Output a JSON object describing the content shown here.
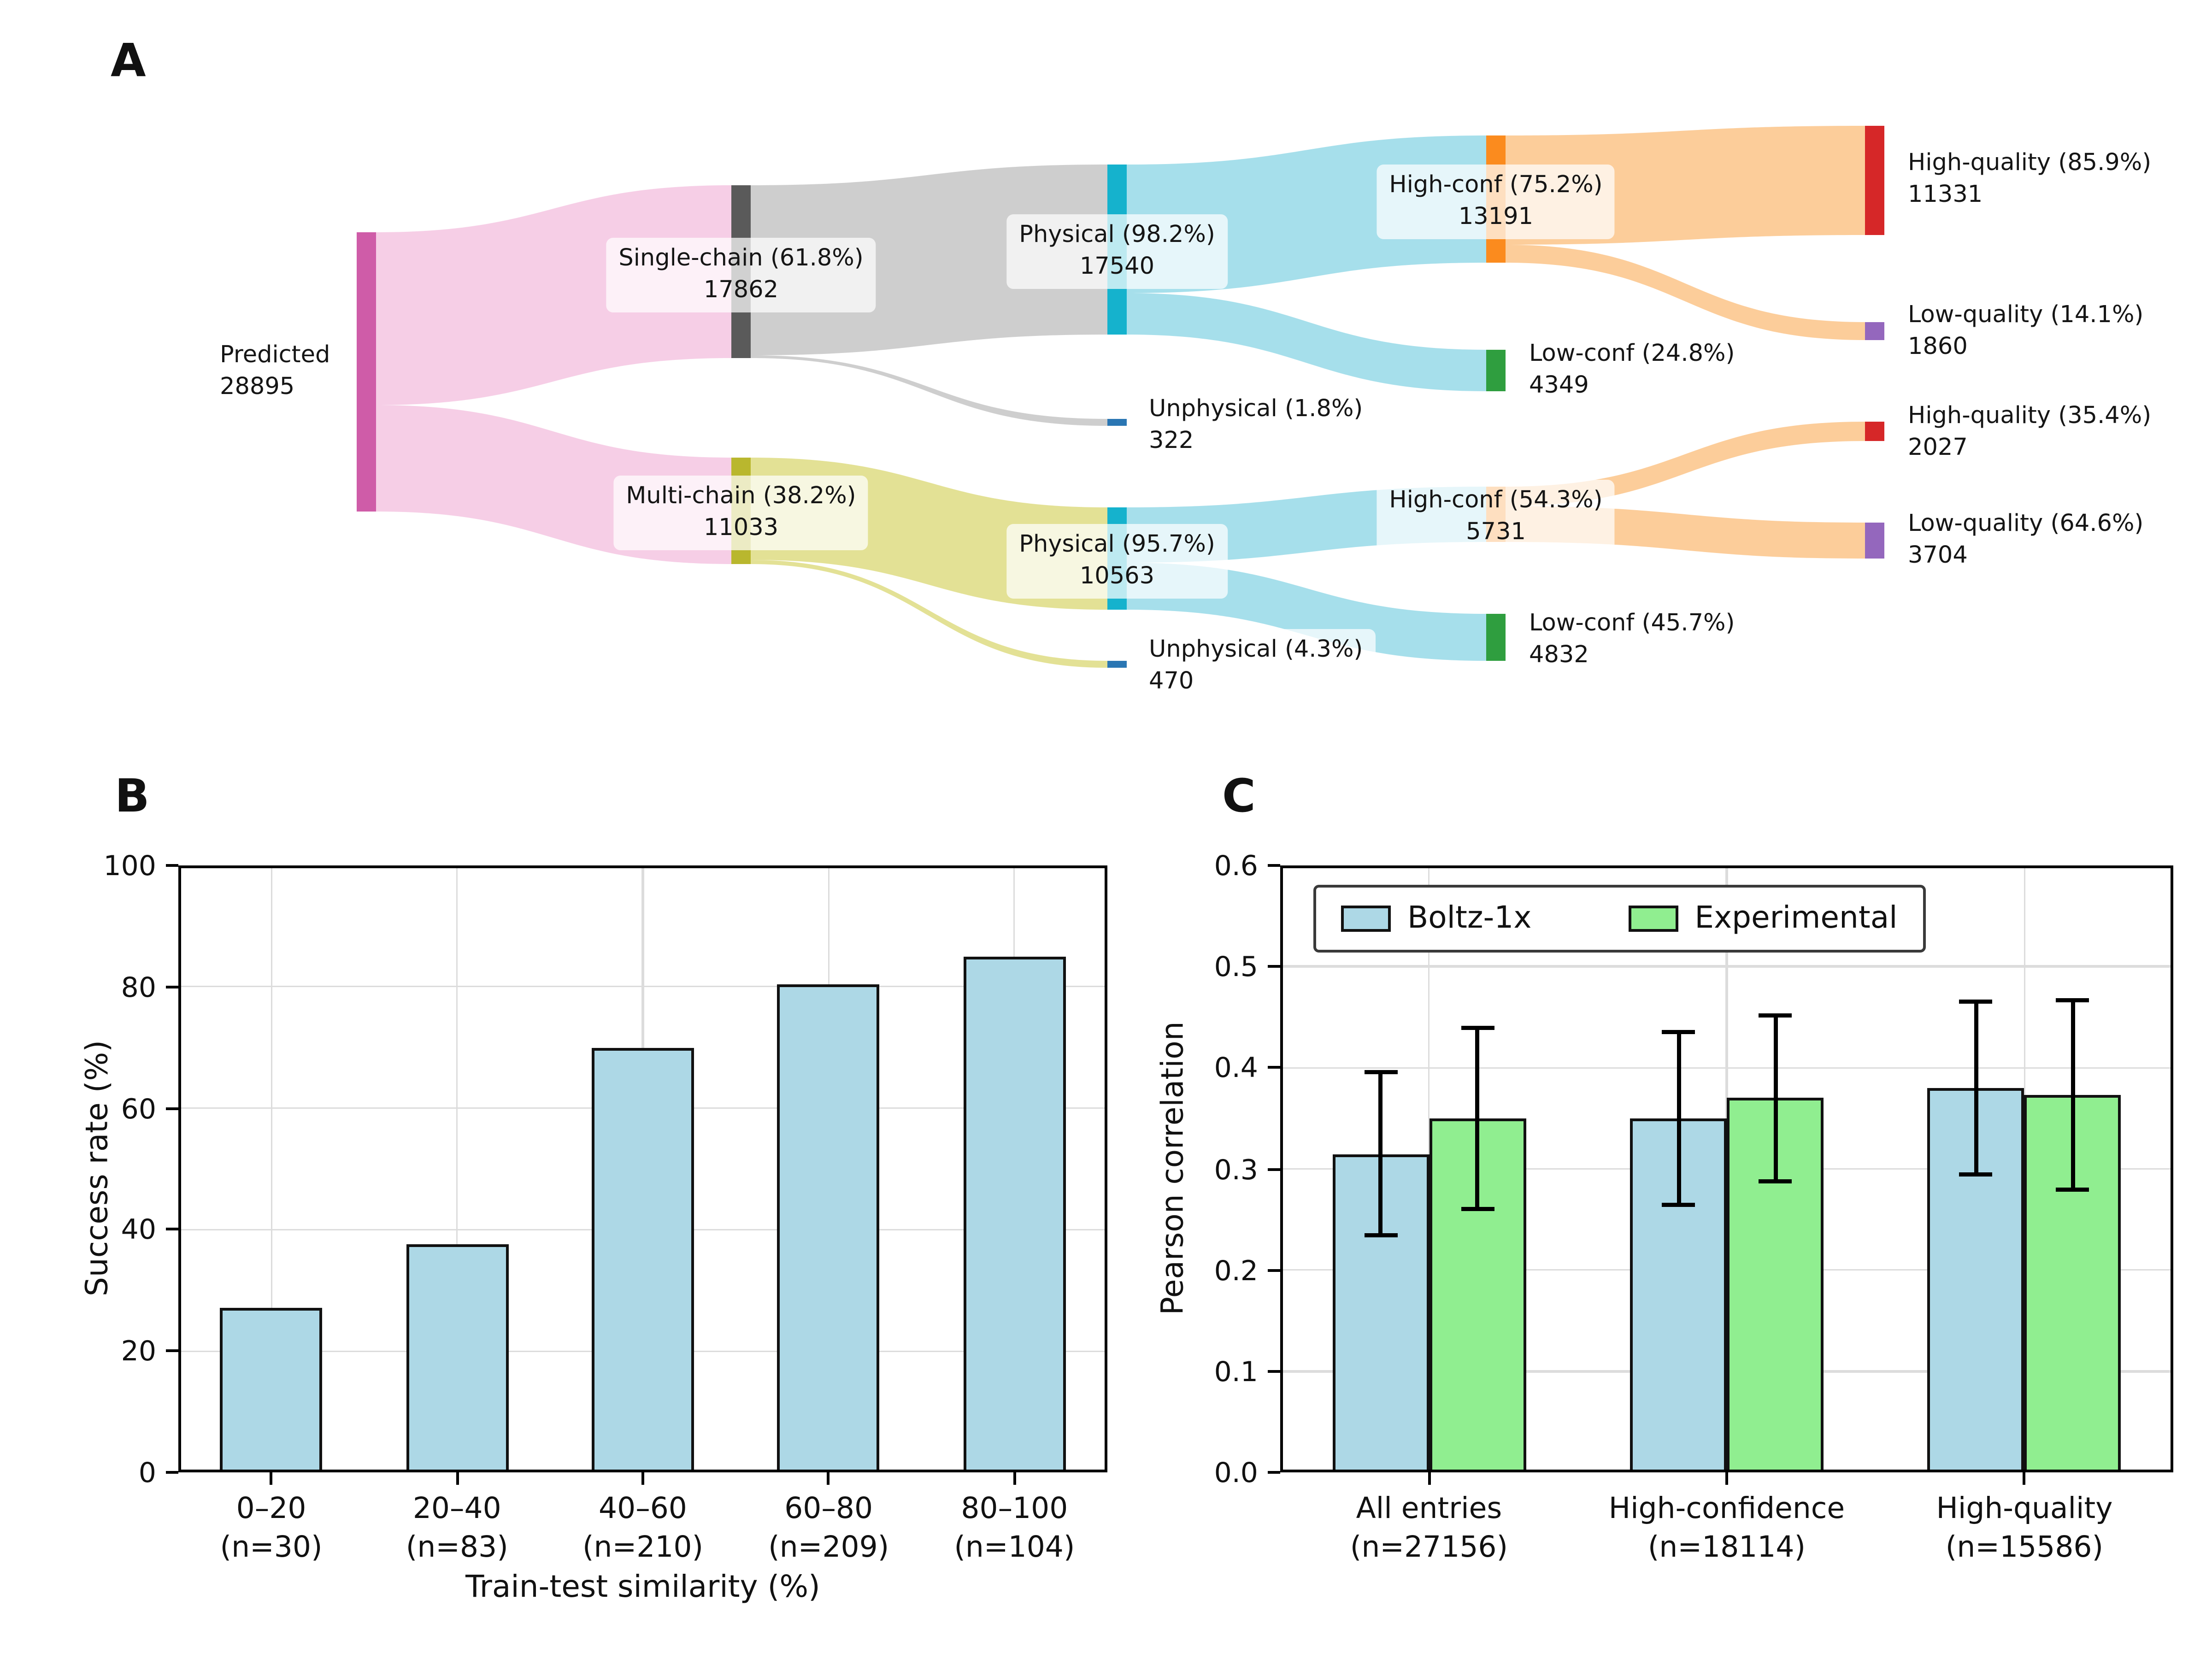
{
  "panel_labels": {
    "a": "A",
    "b": "B",
    "c": "C"
  },
  "chart_data": [
    {
      "type": "sankey",
      "title": "",
      "nodes": {
        "predicted": {
          "label": "Predicted",
          "value": 28895
        },
        "single_chain": {
          "label": "Single-chain (61.8%)",
          "value": 17862
        },
        "multi_chain": {
          "label": "Multi-chain (38.2%)",
          "value": 11033
        },
        "physical_single": {
          "label": "Physical (98.2%)",
          "value": 17540
        },
        "unphysical_single": {
          "label": "Unphysical (1.8%)",
          "value": 322
        },
        "physical_multi": {
          "label": "Physical (95.7%)",
          "value": 10563
        },
        "unphysical_multi": {
          "label": "Unphysical (4.3%)",
          "value": 470
        },
        "highconf_single": {
          "label": "High-conf (75.2%)",
          "value": 13191
        },
        "lowconf_single": {
          "label": "Low-conf (24.8%)",
          "value": 4349
        },
        "highconf_multi": {
          "label": "High-conf (54.3%)",
          "value": 5731
        },
        "lowconf_multi": {
          "label": "Low-conf (45.7%)",
          "value": 4832
        },
        "highq_single": {
          "label": "High-quality (85.9%)",
          "value": 11331
        },
        "lowq_single": {
          "label": "Low-quality (14.1%)",
          "value": 1860
        },
        "highq_multi": {
          "label": "High-quality (35.4%)",
          "value": 2027
        },
        "lowq_multi": {
          "label": "Low-quality (64.6%)",
          "value": 3704
        }
      },
      "links": [
        {
          "source": "predicted",
          "target": "single_chain",
          "value": 17862
        },
        {
          "source": "predicted",
          "target": "multi_chain",
          "value": 11033
        },
        {
          "source": "single_chain",
          "target": "physical_single",
          "value": 17540
        },
        {
          "source": "single_chain",
          "target": "unphysical_single",
          "value": 322
        },
        {
          "source": "multi_chain",
          "target": "physical_multi",
          "value": 10563
        },
        {
          "source": "multi_chain",
          "target": "unphysical_multi",
          "value": 470
        },
        {
          "source": "physical_single",
          "target": "highconf_single",
          "value": 13191
        },
        {
          "source": "physical_single",
          "target": "lowconf_single",
          "value": 4349
        },
        {
          "source": "physical_multi",
          "target": "highconf_multi",
          "value": 5731
        },
        {
          "source": "physical_multi",
          "target": "lowconf_multi",
          "value": 4832
        },
        {
          "source": "highconf_single",
          "target": "highq_single",
          "value": 11331
        },
        {
          "source": "highconf_single",
          "target": "lowq_single",
          "value": 1860
        },
        {
          "source": "highconf_multi",
          "target": "highq_multi",
          "value": 2027
        },
        {
          "source": "highconf_multi",
          "target": "lowq_multi",
          "value": 3704
        }
      ],
      "colors": {
        "node_predicted": "#cf5ca8",
        "flow_pink": "#f4c6e2",
        "node_single_chain": "#5a5a5a",
        "flow_gray": "#c6c6c6",
        "node_multi_chain": "#b9b72e",
        "flow_olive": "#dedc82",
        "node_physical": "#15b2cd",
        "flow_cyan": "#96d9e7",
        "node_unphysical": "#2a76b3",
        "node_high_conf": "#fb8b1e",
        "flow_orange": "#fcc488",
        "node_low_conf": "#2f9e3f",
        "node_high_quality": "#d62728",
        "node_low_quality": "#9467bd"
      }
    },
    {
      "type": "bar",
      "ylabel": "Success rate (%)",
      "xlabel": "Train-test similarity (%)",
      "ylim": [
        0,
        100
      ],
      "yticks": [
        0,
        20,
        40,
        60,
        80,
        100
      ],
      "ytick_labels": [
        "0",
        "20",
        "40",
        "60",
        "80",
        "100"
      ],
      "categories": [
        {
          "tick": "0–20",
          "n": "(n=30)"
        },
        {
          "tick": "20–40",
          "n": "(n=83)"
        },
        {
          "tick": "40–60",
          "n": "(n=210)"
        },
        {
          "tick": "60–80",
          "n": "(n=209)"
        },
        {
          "tick": "80–100",
          "n": "(n=104)"
        }
      ],
      "series": [
        {
          "name": "Success rate",
          "color": "#ADD8E6",
          "values": [
            27,
            37.5,
            70,
            80.5,
            85
          ]
        }
      ],
      "grid": true,
      "legend": false
    },
    {
      "type": "grouped_bar",
      "ylabel": "Pearson correlation",
      "xlabel": "",
      "ylim": [
        0,
        0.6
      ],
      "yticks": [
        0,
        0.1,
        0.2,
        0.3,
        0.4,
        0.5,
        0.6
      ],
      "ytick_labels": [
        "0.0",
        "0.1",
        "0.2",
        "0.3",
        "0.4",
        "0.5",
        "0.6"
      ],
      "categories": [
        {
          "tick": "All entries",
          "n": "(n=27156)"
        },
        {
          "tick": "High-confidence",
          "n": "(n=18114)"
        },
        {
          "tick": "High-quality",
          "n": "(n=15586)"
        }
      ],
      "series": [
        {
          "name": "Boltz-1x",
          "color": "#ADD8E6",
          "values": [
            0.315,
            0.35,
            0.38
          ],
          "err_lo": [
            0.235,
            0.265,
            0.295
          ],
          "err_hi": [
            0.395,
            0.435,
            0.465
          ]
        },
        {
          "name": "Experimental",
          "color": "#90EE90",
          "values": [
            0.35,
            0.37,
            0.373
          ],
          "err_lo": [
            0.26,
            0.288,
            0.28
          ],
          "err_hi": [
            0.44,
            0.452,
            0.467
          ]
        }
      ],
      "grid": true,
      "legend": true,
      "legend_position": "upper left"
    }
  ]
}
